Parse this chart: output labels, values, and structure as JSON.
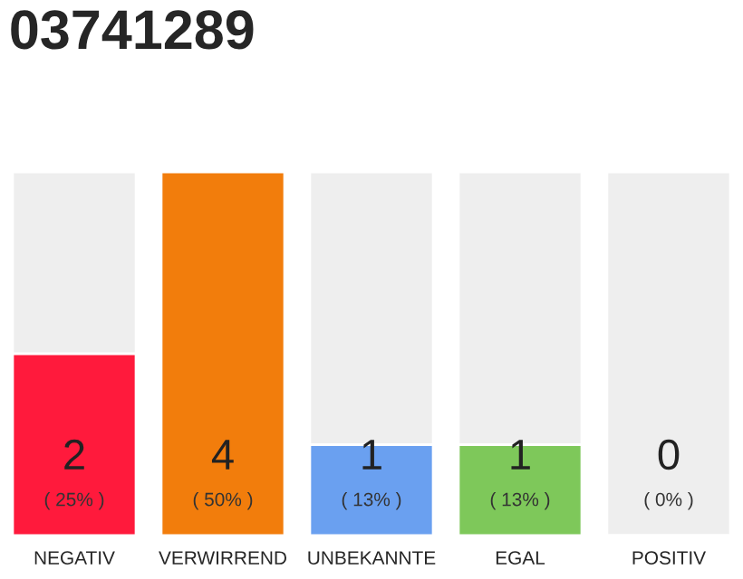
{
  "chart_data": {
    "type": "bar",
    "title": "03741289",
    "categories": [
      "NEGATIV",
      "VERWIRREND",
      "UNBEKANNTE",
      "EGAL",
      "POSITIV"
    ],
    "values": [
      2,
      4,
      1,
      1,
      0
    ],
    "colors": [
      "#ff1a3c",
      "#f27d0c",
      "#6aa0f0",
      "#7ec85a",
      null
    ],
    "value_labels": [
      "2\n( 25% )",
      "4\n( 50% )",
      "1\n( 13% )",
      "1\n( 13% )",
      "0\n( 0% )"
    ],
    "ylim": [
      0,
      4
    ]
  }
}
